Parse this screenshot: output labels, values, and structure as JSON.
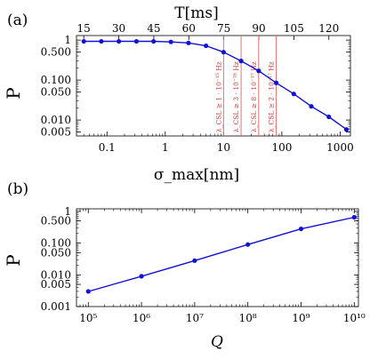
{
  "chart_data": [
    {
      "panel_label": "(a)",
      "type": "line",
      "xlabel": "σ_max[nm]",
      "top_xlabel": "T[ms]",
      "ylabel": "P",
      "xscale": "log",
      "yscale": "log",
      "xlim": [
        0.03,
        1500
      ],
      "ylim": [
        0.004,
        1.3
      ],
      "x_ticks": [
        0.1,
        1,
        10,
        100,
        1000
      ],
      "x_tick_labels": [
        "0.1",
        "1",
        "10",
        "100",
        "1000"
      ],
      "y_ticks": [
        1,
        0.5,
        0.1,
        0.05,
        0.01,
        0.005
      ],
      "y_tick_labels": [
        "1",
        "0.500",
        "0.100",
        "0.050",
        "0.010",
        "0.005"
      ],
      "top_ticks": [
        15,
        30,
        45,
        60,
        75,
        90,
        105,
        120
      ],
      "top_tick_labels": [
        "15",
        "30",
        "45",
        "60",
        "75",
        "90",
        "105",
        "120"
      ],
      "series": [
        {
          "color": "#1010d8",
          "x": [
            0.04,
            0.08,
            0.16,
            0.32,
            0.63,
            1.25,
            2.5,
            5,
            10,
            20,
            40,
            80,
            160,
            320,
            640,
            1280
          ],
          "y": [
            0.93,
            0.93,
            0.93,
            0.93,
            0.93,
            0.9,
            0.85,
            0.72,
            0.5,
            0.3,
            0.17,
            0.085,
            0.045,
            0.022,
            0.012,
            0.0058
          ]
        }
      ],
      "vertical_lines": [
        {
          "x": 10,
          "label": "λ_CSL ≥ 1 · 10⁻¹⁵ Hz"
        },
        {
          "x": 20,
          "label": "λ_CSL ≥ 3 · 10⁻¹⁶ Hz"
        },
        {
          "x": 40,
          "label": "λ_CSL ≥ 8 · 10⁻¹⁷ Hz"
        },
        {
          "x": 80,
          "label": "λ_CSL ≥ 2 · 10⁻¹⁷ Hz"
        }
      ],
      "line_color": "#e87070"
    },
    {
      "panel_label": "(b)",
      "type": "line",
      "xlabel": "Q",
      "ylabel": "P",
      "xscale": "log",
      "yscale": "log",
      "xlim": [
        60000,
        12000000000
      ],
      "ylim": [
        0.001,
        1.2
      ],
      "x_ticks": [
        100000,
        1000000,
        10000000,
        100000000,
        1000000000,
        10000000000
      ],
      "x_tick_labels": [
        "10⁵",
        "10⁶",
        "10⁷",
        "10⁸",
        "10⁹",
        "10¹⁰"
      ],
      "y_ticks": [
        1,
        0.5,
        0.1,
        0.05,
        0.01,
        0.005,
        0.001
      ],
      "y_tick_labels": [
        "1",
        "0.500",
        "0.100",
        "0.050",
        "0.010",
        "0.005",
        "0.001"
      ],
      "series": [
        {
          "color": "#1010d8",
          "x": [
            100000,
            1000000,
            10000000,
            100000000,
            1000000000,
            10000000000
          ],
          "y": [
            0.003,
            0.009,
            0.028,
            0.09,
            0.28,
            0.65
          ]
        }
      ]
    }
  ]
}
